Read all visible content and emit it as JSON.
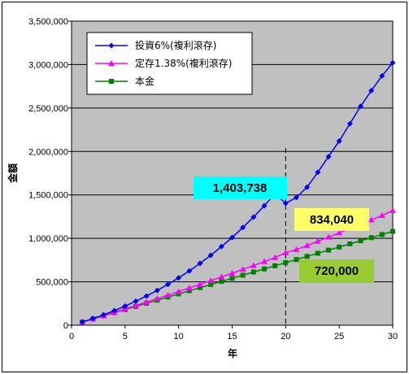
{
  "chart_data": {
    "type": "line",
    "xlabel": "年",
    "ylabel": "金額",
    "xlim": [
      0,
      30
    ],
    "ylim": [
      0,
      3500000
    ],
    "x_ticks": [
      0,
      5,
      10,
      15,
      20,
      25,
      30
    ],
    "y_ticks": [
      0,
      500000,
      1000000,
      1500000,
      2000000,
      2500000,
      3000000,
      3500000
    ],
    "y_tick_labels": [
      "0",
      "500,000",
      "1,000,000",
      "1,500,000",
      "2,000,000",
      "2,500,000",
      "3,000,000",
      "3,500,000"
    ],
    "x_tick_labels": [
      "0",
      "5",
      "10",
      "15",
      "20",
      "25",
      "30"
    ],
    "grid": "horizontal",
    "plot_background": "#c0c0c0",
    "legend_position": "top-left",
    "reference_line_x": 20,
    "x": [
      1,
      2,
      3,
      4,
      5,
      6,
      7,
      8,
      9,
      10,
      11,
      12,
      13,
      14,
      15,
      16,
      17,
      18,
      19,
      20,
      21,
      22,
      23,
      24,
      25,
      26,
      27,
      28,
      29,
      30
    ],
    "series": [
      {
        "name": "投資6%(複利滾存)",
        "color": "#0000ff",
        "marker": "diamond",
        "values": [
          37000,
          77000,
          120000,
          168000,
          220000,
          276000,
          336000,
          400000,
          470000,
          545000,
          625000,
          712000,
          805000,
          905000,
          1010000,
          1125000,
          1245000,
          1375000,
          1513000,
          1403738,
          1470000,
          1590000,
          1760000,
          1940000,
          2120000,
          2320000,
          2520000,
          2700000,
          2870000,
          3020000
        ]
      },
      {
        "name": "定存1.38%(複利滾存)",
        "color": "#ff00ff",
        "marker": "triangle",
        "values": [
          36500,
          73500,
          111000,
          149000,
          188000,
          227000,
          266000,
          306000,
          346500,
          387500,
          429000,
          470500,
          513000,
          555500,
          599000,
          643000,
          687000,
          732000,
          778000,
          834040,
          871000,
          918000,
          966000,
          1014000,
          1063000,
          1112000,
          1162000,
          1212000,
          1263000,
          1320000
        ]
      },
      {
        "name": "本金",
        "color": "#008000",
        "marker": "square",
        "values": [
          36000,
          72000,
          108000,
          144000,
          180000,
          216000,
          252000,
          288000,
          324000,
          360000,
          396000,
          432000,
          468000,
          504000,
          540000,
          576000,
          612000,
          648000,
          684000,
          720000,
          756000,
          792000,
          828000,
          864000,
          900000,
          936000,
          972000,
          1008000,
          1044000,
          1080000
        ]
      }
    ],
    "annotations": [
      {
        "text": "1,403,738",
        "bg": "#00ffff"
      },
      {
        "text": "834,040",
        "bg": "#ffff66"
      },
      {
        "text": "720,000",
        "bg": "#99cc33"
      }
    ]
  }
}
